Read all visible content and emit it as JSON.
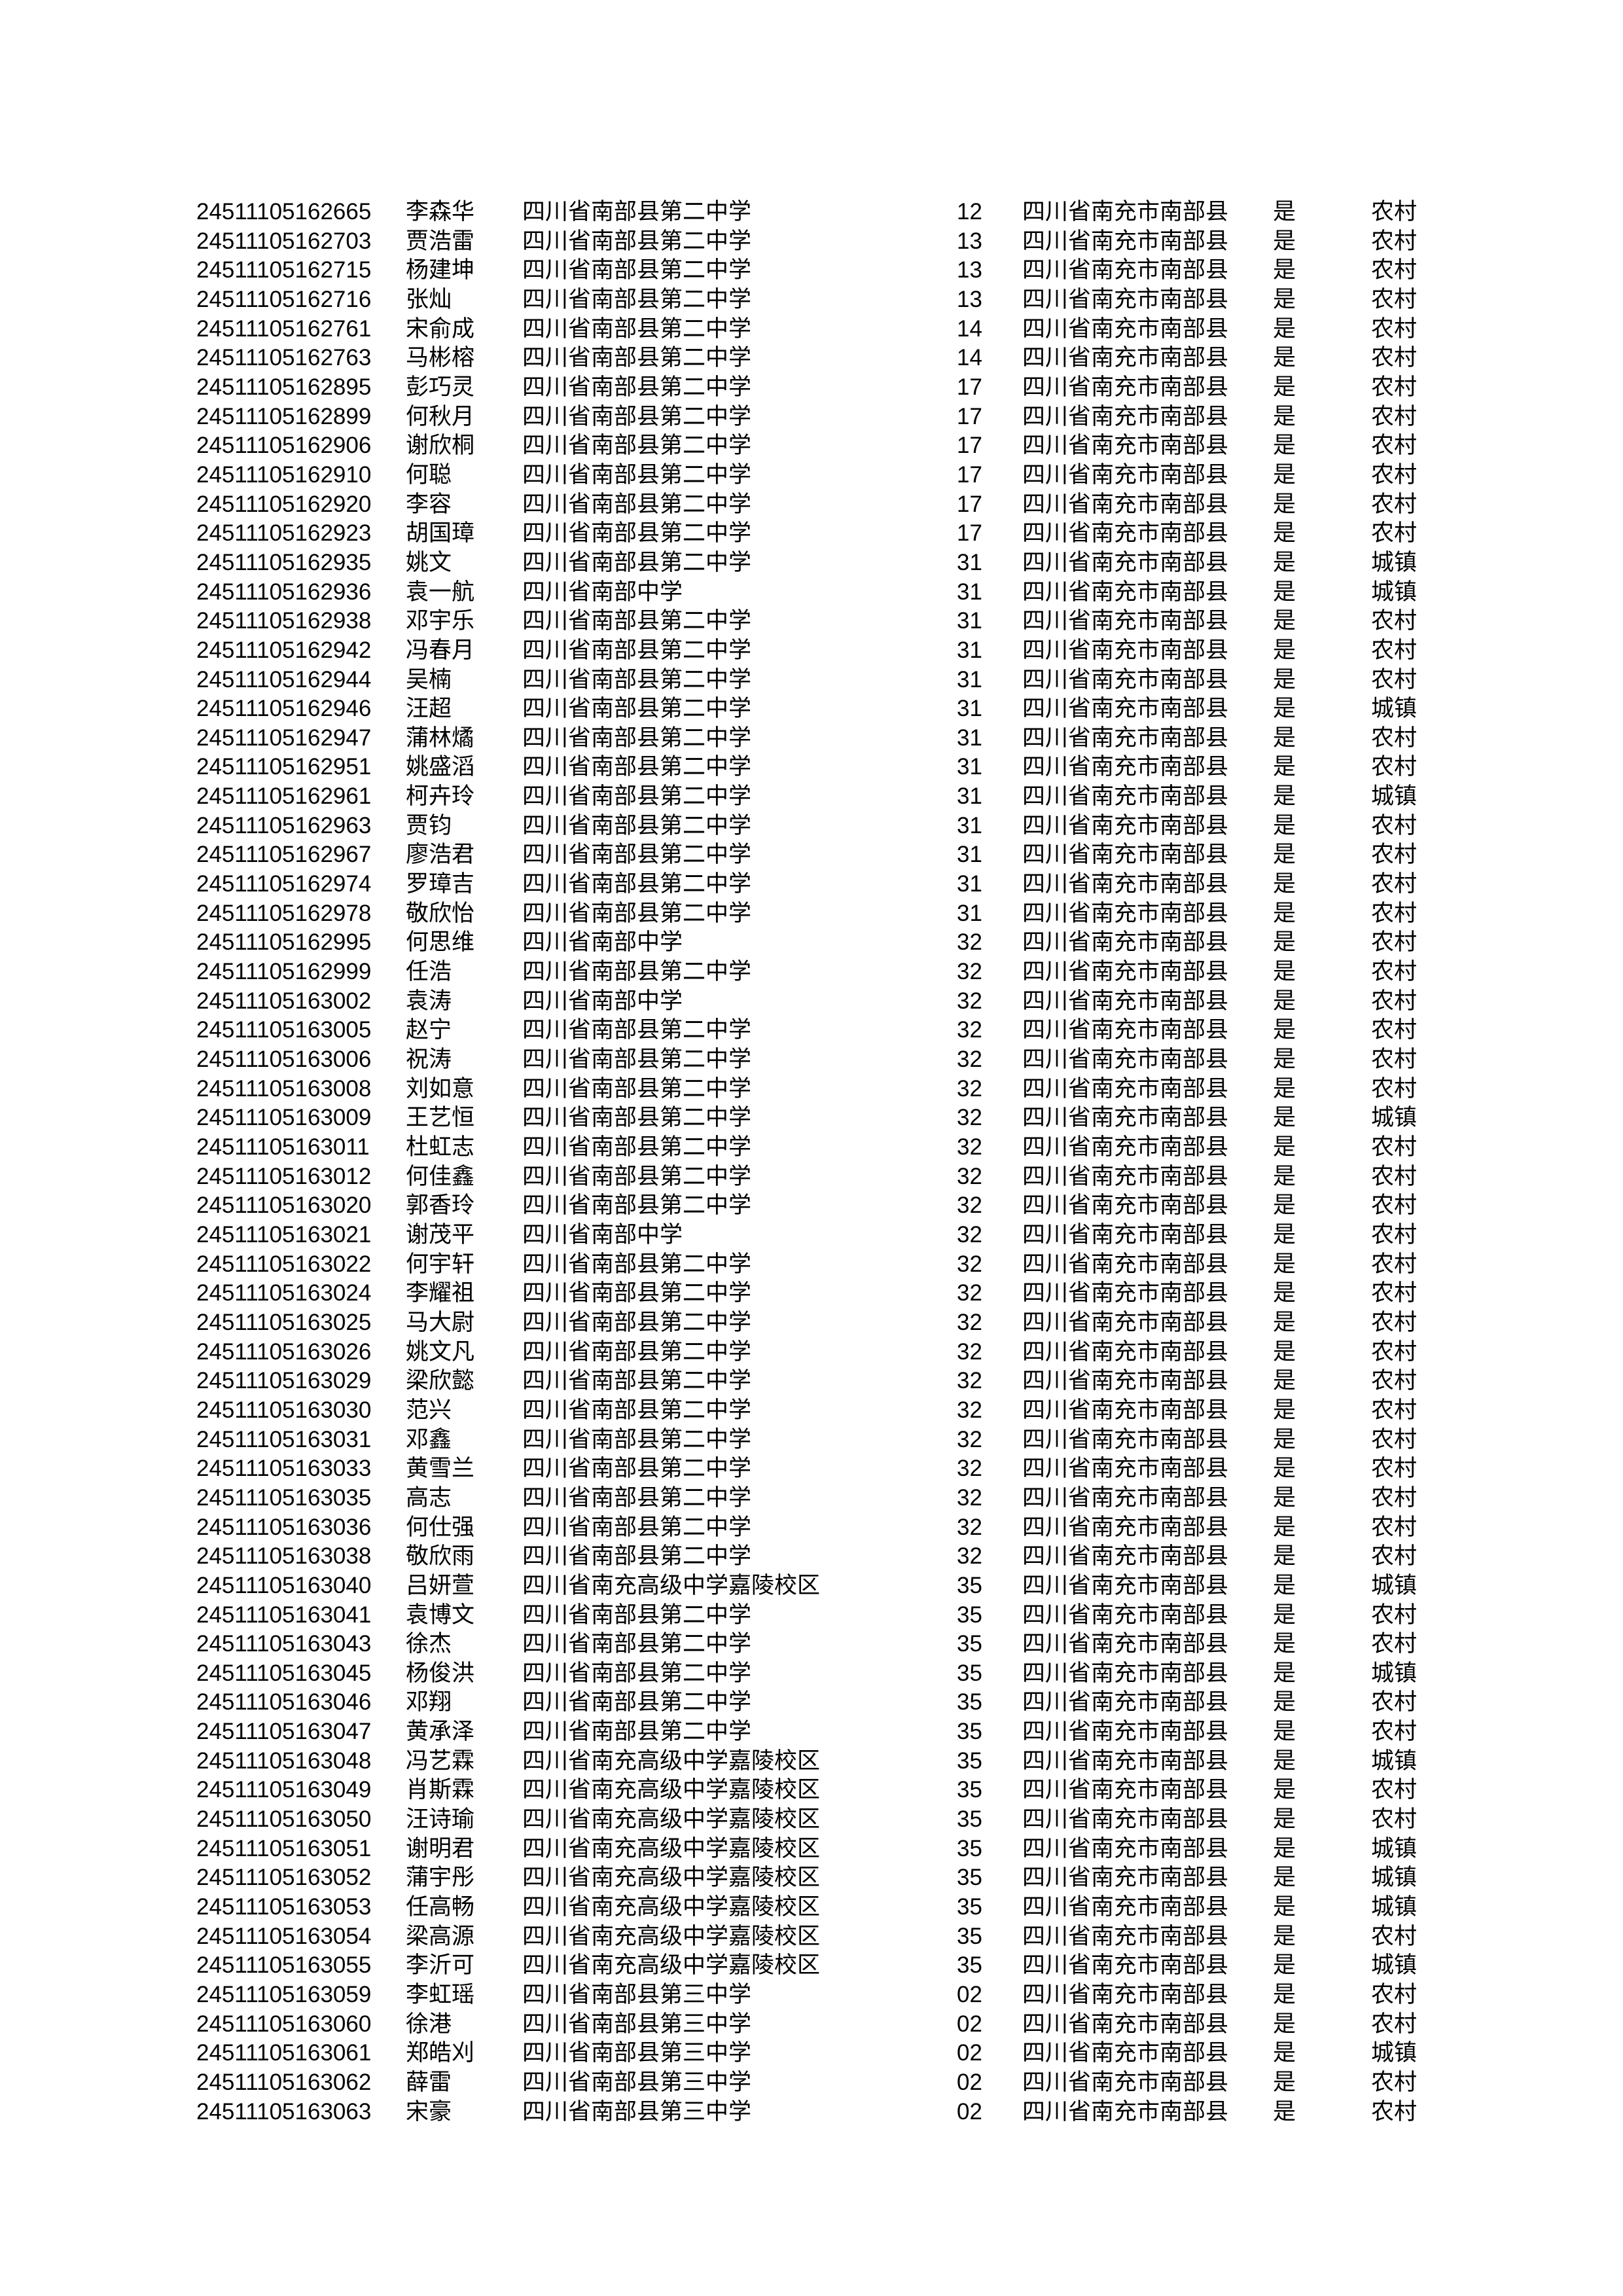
{
  "page": {
    "background_color": "#ffffff",
    "text_color": "#000000"
  },
  "table": {
    "rows": [
      {
        "id": "24511105162665",
        "name": "李森华",
        "school": "四川省南部县第二中学",
        "class_no": "12",
        "district": "四川省南充市南部县",
        "flag": "是",
        "area": "农村"
      },
      {
        "id": "24511105162703",
        "name": "贾浩雷",
        "school": "四川省南部县第二中学",
        "class_no": "13",
        "district": "四川省南充市南部县",
        "flag": "是",
        "area": "农村"
      },
      {
        "id": "24511105162715",
        "name": "杨建坤",
        "school": "四川省南部县第二中学",
        "class_no": "13",
        "district": "四川省南充市南部县",
        "flag": "是",
        "area": "农村"
      },
      {
        "id": "24511105162716",
        "name": "张灿",
        "school": "四川省南部县第二中学",
        "class_no": "13",
        "district": "四川省南充市南部县",
        "flag": "是",
        "area": "农村"
      },
      {
        "id": "24511105162761",
        "name": "宋俞成",
        "school": "四川省南部县第二中学",
        "class_no": "14",
        "district": "四川省南充市南部县",
        "flag": "是",
        "area": "农村"
      },
      {
        "id": "24511105162763",
        "name": "马彬榕",
        "school": "四川省南部县第二中学",
        "class_no": "14",
        "district": "四川省南充市南部县",
        "flag": "是",
        "area": "农村"
      },
      {
        "id": "24511105162895",
        "name": "彭巧灵",
        "school": "四川省南部县第二中学",
        "class_no": "17",
        "district": "四川省南充市南部县",
        "flag": "是",
        "area": "农村"
      },
      {
        "id": "24511105162899",
        "name": "何秋月",
        "school": "四川省南部县第二中学",
        "class_no": "17",
        "district": "四川省南充市南部县",
        "flag": "是",
        "area": "农村"
      },
      {
        "id": "24511105162906",
        "name": "谢欣桐",
        "school": "四川省南部县第二中学",
        "class_no": "17",
        "district": "四川省南充市南部县",
        "flag": "是",
        "area": "农村"
      },
      {
        "id": "24511105162910",
        "name": "何聪",
        "school": "四川省南部县第二中学",
        "class_no": "17",
        "district": "四川省南充市南部县",
        "flag": "是",
        "area": "农村"
      },
      {
        "id": "24511105162920",
        "name": "李容",
        "school": "四川省南部县第二中学",
        "class_no": "17",
        "district": "四川省南充市南部县",
        "flag": "是",
        "area": "农村"
      },
      {
        "id": "24511105162923",
        "name": "胡国璋",
        "school": "四川省南部县第二中学",
        "class_no": "17",
        "district": "四川省南充市南部县",
        "flag": "是",
        "area": "农村"
      },
      {
        "id": "24511105162935",
        "name": "姚文",
        "school": "四川省南部县第二中学",
        "class_no": "31",
        "district": "四川省南充市南部县",
        "flag": "是",
        "area": "城镇"
      },
      {
        "id": "24511105162936",
        "name": "袁一航",
        "school": "四川省南部中学",
        "class_no": "31",
        "district": "四川省南充市南部县",
        "flag": "是",
        "area": "城镇"
      },
      {
        "id": "24511105162938",
        "name": "邓宇乐",
        "school": "四川省南部县第二中学",
        "class_no": "31",
        "district": "四川省南充市南部县",
        "flag": "是",
        "area": "农村"
      },
      {
        "id": "24511105162942",
        "name": "冯春月",
        "school": "四川省南部县第二中学",
        "class_no": "31",
        "district": "四川省南充市南部县",
        "flag": "是",
        "area": "农村"
      },
      {
        "id": "24511105162944",
        "name": "吴楠",
        "school": "四川省南部县第二中学",
        "class_no": "31",
        "district": "四川省南充市南部县",
        "flag": "是",
        "area": "农村"
      },
      {
        "id": "24511105162946",
        "name": "汪超",
        "school": "四川省南部县第二中学",
        "class_no": "31",
        "district": "四川省南充市南部县",
        "flag": "是",
        "area": "城镇"
      },
      {
        "id": "24511105162947",
        "name": "蒲林燏",
        "school": "四川省南部县第二中学",
        "class_no": "31",
        "district": "四川省南充市南部县",
        "flag": "是",
        "area": "农村"
      },
      {
        "id": "24511105162951",
        "name": "姚盛滔",
        "school": "四川省南部县第二中学",
        "class_no": "31",
        "district": "四川省南充市南部县",
        "flag": "是",
        "area": "农村"
      },
      {
        "id": "24511105162961",
        "name": "柯卉玲",
        "school": "四川省南部县第二中学",
        "class_no": "31",
        "district": "四川省南充市南部县",
        "flag": "是",
        "area": "城镇"
      },
      {
        "id": "24511105162963",
        "name": "贾钧",
        "school": "四川省南部县第二中学",
        "class_no": "31",
        "district": "四川省南充市南部县",
        "flag": "是",
        "area": "农村"
      },
      {
        "id": "24511105162967",
        "name": "廖浩君",
        "school": "四川省南部县第二中学",
        "class_no": "31",
        "district": "四川省南充市南部县",
        "flag": "是",
        "area": "农村"
      },
      {
        "id": "24511105162974",
        "name": "罗璋吉",
        "school": "四川省南部县第二中学",
        "class_no": "31",
        "district": "四川省南充市南部县",
        "flag": "是",
        "area": "农村"
      },
      {
        "id": "24511105162978",
        "name": "敬欣怡",
        "school": "四川省南部县第二中学",
        "class_no": "31",
        "district": "四川省南充市南部县",
        "flag": "是",
        "area": "农村"
      },
      {
        "id": "24511105162995",
        "name": "何思维",
        "school": "四川省南部中学",
        "class_no": "32",
        "district": "四川省南充市南部县",
        "flag": "是",
        "area": "农村"
      },
      {
        "id": "24511105162999",
        "name": "任浩",
        "school": "四川省南部县第二中学",
        "class_no": "32",
        "district": "四川省南充市南部县",
        "flag": "是",
        "area": "农村"
      },
      {
        "id": "24511105163002",
        "name": "袁涛",
        "school": "四川省南部中学",
        "class_no": "32",
        "district": "四川省南充市南部县",
        "flag": "是",
        "area": "农村"
      },
      {
        "id": "24511105163005",
        "name": "赵宁",
        "school": "四川省南部县第二中学",
        "class_no": "32",
        "district": "四川省南充市南部县",
        "flag": "是",
        "area": "农村"
      },
      {
        "id": "24511105163006",
        "name": "祝涛",
        "school": "四川省南部县第二中学",
        "class_no": "32",
        "district": "四川省南充市南部县",
        "flag": "是",
        "area": "农村"
      },
      {
        "id": "24511105163008",
        "name": "刘如意",
        "school": "四川省南部县第二中学",
        "class_no": "32",
        "district": "四川省南充市南部县",
        "flag": "是",
        "area": "农村"
      },
      {
        "id": "24511105163009",
        "name": "王艺恒",
        "school": "四川省南部县第二中学",
        "class_no": "32",
        "district": "四川省南充市南部县",
        "flag": "是",
        "area": "城镇"
      },
      {
        "id": "24511105163011",
        "name": "杜虹志",
        "school": "四川省南部县第二中学",
        "class_no": "32",
        "district": "四川省南充市南部县",
        "flag": "是",
        "area": "农村"
      },
      {
        "id": "24511105163012",
        "name": "何佳鑫",
        "school": "四川省南部县第二中学",
        "class_no": "32",
        "district": "四川省南充市南部县",
        "flag": "是",
        "area": "农村"
      },
      {
        "id": "24511105163020",
        "name": "郭香玲",
        "school": "四川省南部县第二中学",
        "class_no": "32",
        "district": "四川省南充市南部县",
        "flag": "是",
        "area": "农村"
      },
      {
        "id": "24511105163021",
        "name": "谢茂平",
        "school": "四川省南部中学",
        "class_no": "32",
        "district": "四川省南充市南部县",
        "flag": "是",
        "area": "农村"
      },
      {
        "id": "24511105163022",
        "name": "何宇轩",
        "school": "四川省南部县第二中学",
        "class_no": "32",
        "district": "四川省南充市南部县",
        "flag": "是",
        "area": "农村"
      },
      {
        "id": "24511105163024",
        "name": "李耀祖",
        "school": "四川省南部县第二中学",
        "class_no": "32",
        "district": "四川省南充市南部县",
        "flag": "是",
        "area": "农村"
      },
      {
        "id": "24511105163025",
        "name": "马大尉",
        "school": "四川省南部县第二中学",
        "class_no": "32",
        "district": "四川省南充市南部县",
        "flag": "是",
        "area": "农村"
      },
      {
        "id": "24511105163026",
        "name": "姚文凡",
        "school": "四川省南部县第二中学",
        "class_no": "32",
        "district": "四川省南充市南部县",
        "flag": "是",
        "area": "农村"
      },
      {
        "id": "24511105163029",
        "name": "梁欣懿",
        "school": "四川省南部县第二中学",
        "class_no": "32",
        "district": "四川省南充市南部县",
        "flag": "是",
        "area": "农村"
      },
      {
        "id": "24511105163030",
        "name": "范兴",
        "school": "四川省南部县第二中学",
        "class_no": "32",
        "district": "四川省南充市南部县",
        "flag": "是",
        "area": "农村"
      },
      {
        "id": "24511105163031",
        "name": "邓鑫",
        "school": "四川省南部县第二中学",
        "class_no": "32",
        "district": "四川省南充市南部县",
        "flag": "是",
        "area": "农村"
      },
      {
        "id": "24511105163033",
        "name": "黄雪兰",
        "school": "四川省南部县第二中学",
        "class_no": "32",
        "district": "四川省南充市南部县",
        "flag": "是",
        "area": "农村"
      },
      {
        "id": "24511105163035",
        "name": "高志",
        "school": "四川省南部县第二中学",
        "class_no": "32",
        "district": "四川省南充市南部县",
        "flag": "是",
        "area": "农村"
      },
      {
        "id": "24511105163036",
        "name": "何仕强",
        "school": "四川省南部县第二中学",
        "class_no": "32",
        "district": "四川省南充市南部县",
        "flag": "是",
        "area": "农村"
      },
      {
        "id": "24511105163038",
        "name": "敬欣雨",
        "school": "四川省南部县第二中学",
        "class_no": "32",
        "district": "四川省南充市南部县",
        "flag": "是",
        "area": "农村"
      },
      {
        "id": "24511105163040",
        "name": "吕妍萱",
        "school": "四川省南充高级中学嘉陵校区",
        "class_no": "35",
        "district": "四川省南充市南部县",
        "flag": "是",
        "area": "城镇"
      },
      {
        "id": "24511105163041",
        "name": "袁博文",
        "school": "四川省南部县第二中学",
        "class_no": "35",
        "district": "四川省南充市南部县",
        "flag": "是",
        "area": "农村"
      },
      {
        "id": "24511105163043",
        "name": "徐杰",
        "school": "四川省南部县第二中学",
        "class_no": "35",
        "district": "四川省南充市南部县",
        "flag": "是",
        "area": "农村"
      },
      {
        "id": "24511105163045",
        "name": "杨俊洪",
        "school": "四川省南部县第二中学",
        "class_no": "35",
        "district": "四川省南充市南部县",
        "flag": "是",
        "area": "城镇"
      },
      {
        "id": "24511105163046",
        "name": "邓翔",
        "school": "四川省南部县第二中学",
        "class_no": "35",
        "district": "四川省南充市南部县",
        "flag": "是",
        "area": "农村"
      },
      {
        "id": "24511105163047",
        "name": "黄承泽",
        "school": "四川省南部县第二中学",
        "class_no": "35",
        "district": "四川省南充市南部县",
        "flag": "是",
        "area": "农村"
      },
      {
        "id": "24511105163048",
        "name": "冯艺霖",
        "school": "四川省南充高级中学嘉陵校区",
        "class_no": "35",
        "district": "四川省南充市南部县",
        "flag": "是",
        "area": "城镇"
      },
      {
        "id": "24511105163049",
        "name": "肖斯霖",
        "school": "四川省南充高级中学嘉陵校区",
        "class_no": "35",
        "district": "四川省南充市南部县",
        "flag": "是",
        "area": "农村"
      },
      {
        "id": "24511105163050",
        "name": "汪诗瑜",
        "school": "四川省南充高级中学嘉陵校区",
        "class_no": "35",
        "district": "四川省南充市南部县",
        "flag": "是",
        "area": "农村"
      },
      {
        "id": "24511105163051",
        "name": "谢明君",
        "school": "四川省南充高级中学嘉陵校区",
        "class_no": "35",
        "district": "四川省南充市南部县",
        "flag": "是",
        "area": "城镇"
      },
      {
        "id": "24511105163052",
        "name": "蒲宇彤",
        "school": "四川省南充高级中学嘉陵校区",
        "class_no": "35",
        "district": "四川省南充市南部县",
        "flag": "是",
        "area": "城镇"
      },
      {
        "id": "24511105163053",
        "name": "任高畅",
        "school": "四川省南充高级中学嘉陵校区",
        "class_no": "35",
        "district": "四川省南充市南部县",
        "flag": "是",
        "area": "城镇"
      },
      {
        "id": "24511105163054",
        "name": "梁高源",
        "school": "四川省南充高级中学嘉陵校区",
        "class_no": "35",
        "district": "四川省南充市南部县",
        "flag": "是",
        "area": "农村"
      },
      {
        "id": "24511105163055",
        "name": "李沂可",
        "school": "四川省南充高级中学嘉陵校区",
        "class_no": "35",
        "district": "四川省南充市南部县",
        "flag": "是",
        "area": "城镇"
      },
      {
        "id": "24511105163059",
        "name": "李虹瑶",
        "school": "四川省南部县第三中学",
        "class_no": "02",
        "district": "四川省南充市南部县",
        "flag": "是",
        "area": "农村"
      },
      {
        "id": "24511105163060",
        "name": "徐港",
        "school": "四川省南部县第三中学",
        "class_no": "02",
        "district": "四川省南充市南部县",
        "flag": "是",
        "area": "农村"
      },
      {
        "id": "24511105163061",
        "name": "郑皓刈",
        "school": "四川省南部县第三中学",
        "class_no": "02",
        "district": "四川省南充市南部县",
        "flag": "是",
        "area": "城镇"
      },
      {
        "id": "24511105163062",
        "name": "薛雷",
        "school": "四川省南部县第三中学",
        "class_no": "02",
        "district": "四川省南充市南部县",
        "flag": "是",
        "area": "农村"
      },
      {
        "id": "24511105163063",
        "name": "宋豪",
        "school": "四川省南部县第三中学",
        "class_no": "02",
        "district": "四川省南充市南部县",
        "flag": "是",
        "area": "农村"
      }
    ]
  }
}
